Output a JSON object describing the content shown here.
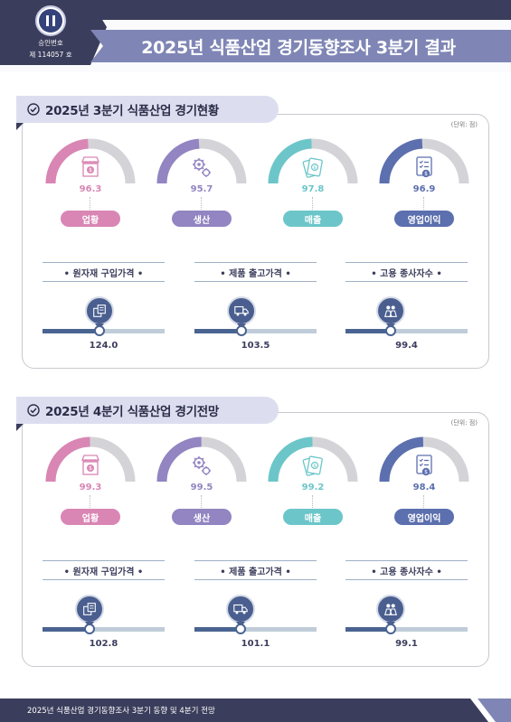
{
  "header": {
    "title": "2025년 식품산업 경기동향조사 3분기 결과",
    "approval_label": "승인번호",
    "approval_number": "제 114057 호",
    "colors": {
      "dark": "#3b3d5c",
      "ribbon": "#7f86b5"
    }
  },
  "sections": [
    {
      "title": "2025년 3분기 식품산업 경기현황",
      "unit": "(단위: 점)",
      "gauges": [
        {
          "label": "업황",
          "value": "96.3",
          "score": 96.3,
          "color": "#d986b4",
          "icon": "store-icon"
        },
        {
          "label": "생산",
          "value": "95.7",
          "score": 95.7,
          "color": "#9285c1",
          "icon": "gear-icon"
        },
        {
          "label": "매출",
          "value": "97.8",
          "score": 97.8,
          "color": "#6cc6c9",
          "icon": "money-icon"
        },
        {
          "label": "영업이익",
          "value": "96.9",
          "score": 96.9,
          "color": "#5c6fae",
          "icon": "report-icon"
        }
      ],
      "indicators": [
        {
          "label": "• 원자재 구입가격 •",
          "value": "124.0",
          "score": 124.0,
          "icon": "materials-icon"
        },
        {
          "label": "• 제품 출고가격 •",
          "value": "103.5",
          "score": 103.5,
          "icon": "truck-icon"
        },
        {
          "label": "• 고용 종사자수 •",
          "value": "99.4",
          "score": 99.4,
          "icon": "people-icon"
        }
      ]
    },
    {
      "title": "2025년 4분기 식품산업 경기전망",
      "unit": "(단위: 점)",
      "gauges": [
        {
          "label": "업황",
          "value": "99.3",
          "score": 99.3,
          "color": "#d986b4",
          "icon": "store-icon"
        },
        {
          "label": "생산",
          "value": "99.5",
          "score": 99.5,
          "color": "#9285c1",
          "icon": "gear-icon"
        },
        {
          "label": "매출",
          "value": "99.2",
          "score": 99.2,
          "color": "#6cc6c9",
          "icon": "money-icon"
        },
        {
          "label": "영업이익",
          "value": "98.4",
          "score": 98.4,
          "color": "#5c6fae",
          "icon": "report-icon"
        }
      ],
      "indicators": [
        {
          "label": "• 원자재 구입가격 •",
          "value": "102.8",
          "score": 102.8,
          "icon": "materials-icon"
        },
        {
          "label": "• 제품 출고가격 •",
          "value": "101.1",
          "score": 101.1,
          "icon": "truck-icon"
        },
        {
          "label": "• 고용 종사자수 •",
          "value": "99.1",
          "score": 99.1,
          "icon": "people-icon"
        }
      ]
    }
  ],
  "footer": {
    "text": "2025년 식품산업 경기동향조사 3분기 동향 및 4분기 전망"
  }
}
